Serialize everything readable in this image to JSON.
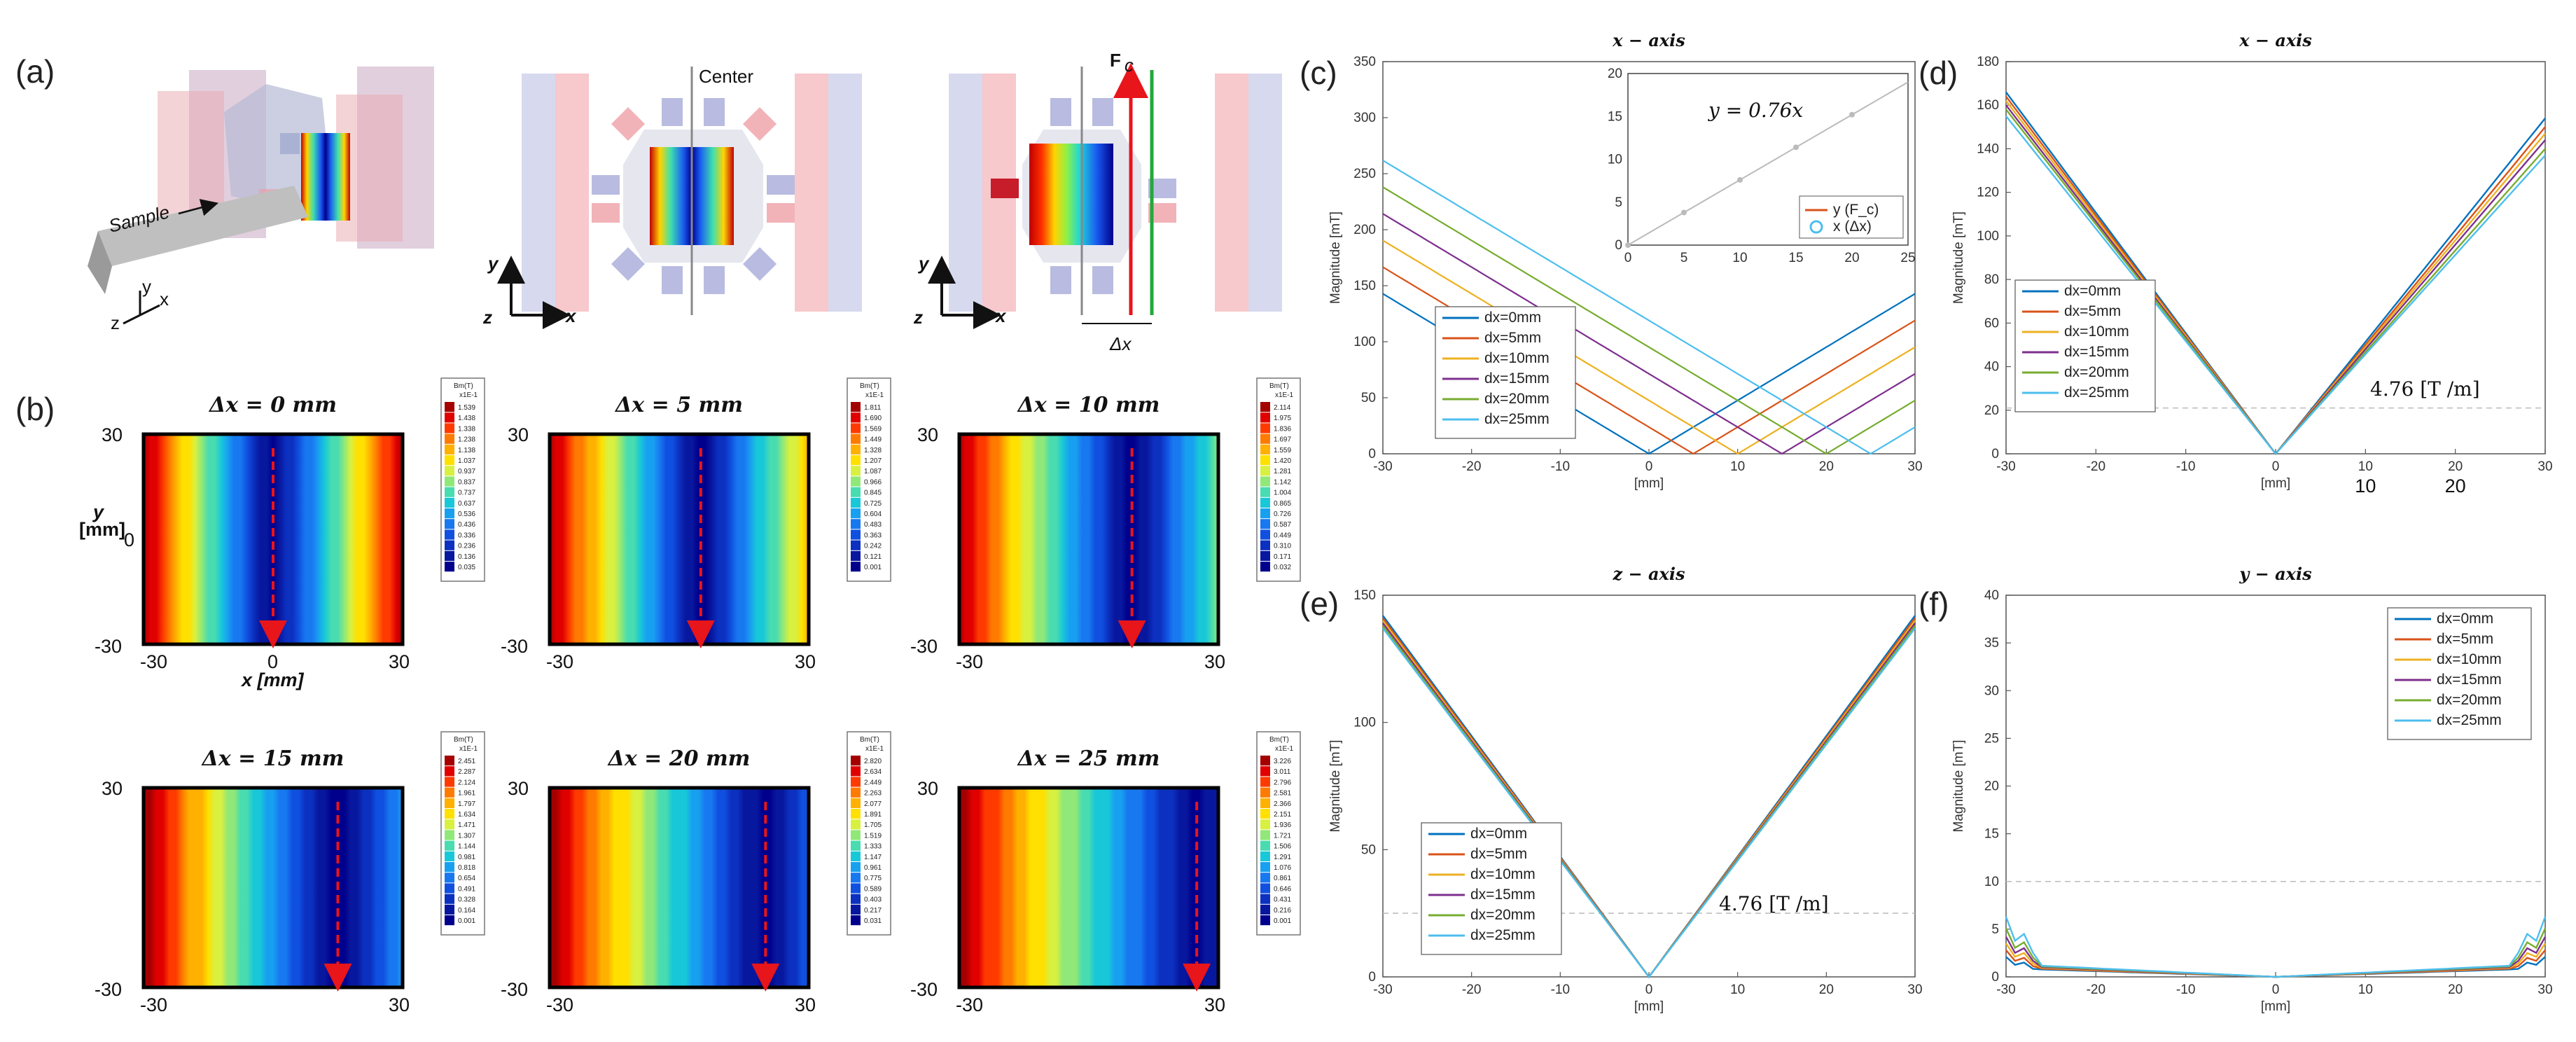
{
  "panel_labels": [
    "(a)",
    "(b)",
    "(c)",
    "(d)",
    "(e)",
    "(f)"
  ],
  "panel_a": {
    "sample_label": "Sample",
    "center_label": "Center",
    "force_label": "F",
    "force_sub": "c",
    "delta_label": "Δx",
    "axis_labels": {
      "x": "x",
      "y": "y",
      "z": "z"
    }
  },
  "panel_b": {
    "colorbar_header": "Bm(T)",
    "colorbar_sub": "x1E-1",
    "y_axis_label": "y",
    "y_axis_unit": "[mm]",
    "x_axis_label": "x [mm]",
    "tick_neg": "-30",
    "tick_pos": "30",
    "tick_zero": "0",
    "maps": [
      {
        "title": "Δx = 0 mm",
        "dx": 0,
        "colorbar": [
          "1.539",
          "1.438",
          "1.338",
          "1.238",
          "1.138",
          "1.037",
          "0.937",
          "0.837",
          "0.737",
          "0.637",
          "0.536",
          "0.436",
          "0.336",
          "0.236",
          "0.136",
          "0.035"
        ]
      },
      {
        "title": "Δx = 5 mm",
        "dx": 5,
        "colorbar": [
          "1.811",
          "1.690",
          "1.569",
          "1.449",
          "1.328",
          "1.207",
          "1.087",
          "0.966",
          "0.845",
          "0.725",
          "0.604",
          "0.483",
          "0.363",
          "0.242",
          "0.121",
          "0.001"
        ]
      },
      {
        "title": "Δx = 10 mm",
        "dx": 10,
        "colorbar": [
          "2.114",
          "1.975",
          "1.836",
          "1.697",
          "1.559",
          "1.420",
          "1.281",
          "1.142",
          "1.004",
          "0.865",
          "0.726",
          "0.587",
          "0.449",
          "0.310",
          "0.171",
          "0.032"
        ]
      },
      {
        "title": "Δx = 15 mm",
        "dx": 15,
        "colorbar": [
          "2.451",
          "2.287",
          "2.124",
          "1.961",
          "1.797",
          "1.634",
          "1.471",
          "1.307",
          "1.144",
          "0.981",
          "0.818",
          "0.654",
          "0.491",
          "0.328",
          "0.164",
          "0.001"
        ]
      },
      {
        "title": "Δx = 20 mm",
        "dx": 20,
        "colorbar": [
          "2.820",
          "2.634",
          "2.449",
          "2.263",
          "2.077",
          "1.891",
          "1.705",
          "1.519",
          "1.333",
          "1.147",
          "0.961",
          "0.775",
          "0.589",
          "0.403",
          "0.217",
          "0.031"
        ]
      },
      {
        "title": "Δx = 25 mm",
        "dx": 25,
        "colorbar": [
          "3.226",
          "3.011",
          "2.796",
          "2.581",
          "2.366",
          "2.151",
          "1.936",
          "1.721",
          "1.506",
          "1.291",
          "1.076",
          "0.861",
          "0.646",
          "0.431",
          "0.216",
          "0.001"
        ]
      }
    ]
  },
  "legend_entries": [
    "dx=0mm",
    "dx=5mm",
    "dx=10mm",
    "dx=15mm",
    "dx=20mm",
    "dx=25mm"
  ],
  "series_colors": [
    "#0072BD",
    "#D95319",
    "#EDB120",
    "#7E2F8E",
    "#77AC30",
    "#4DBEEE"
  ],
  "chart_data": [
    {
      "panel": "(c)",
      "type": "line",
      "title": "x − axis",
      "xlabel": "[mm]",
      "ylabel": "Magnitude [mT]",
      "xlim": [
        -30,
        30
      ],
      "ylim": [
        0,
        350
      ],
      "xticks": [
        -30,
        -20,
        -10,
        0,
        10,
        20,
        30
      ],
      "yticks": [
        0,
        50,
        100,
        150,
        200,
        250,
        300,
        350
      ],
      "gradient_T_per_m": 4.76,
      "series": [
        {
          "name": "dx=0mm",
          "vertex_x": 0
        },
        {
          "name": "dx=5mm",
          "vertex_x": 5
        },
        {
          "name": "dx=10mm",
          "vertex_x": 10
        },
        {
          "name": "dx=15mm",
          "vertex_x": 15
        },
        {
          "name": "dx=20mm",
          "vertex_x": 20
        },
        {
          "name": "dx=25mm",
          "vertex_x": 25
        }
      ],
      "inset": {
        "type": "scatter",
        "formula": "y = 0.76x",
        "xlim": [
          0,
          25
        ],
        "ylim": [
          0,
          20
        ],
        "xticks": [
          0,
          5,
          10,
          15,
          20,
          25
        ],
        "yticks": [
          0,
          5,
          10,
          15,
          20
        ],
        "fit_slope": 0.76,
        "x": [
          0,
          5,
          10,
          15,
          20
        ],
        "y": [
          0,
          3.8,
          7.6,
          11.4,
          15.2
        ],
        "legend": [
          "y (F_c)",
          "x (Δx)"
        ]
      }
    },
    {
      "panel": "(d)",
      "type": "line",
      "title": "x − axis",
      "xlabel": "[mm]",
      "ylabel": "Magnitude [mT]",
      "xlim": [
        -30,
        30
      ],
      "ylim": [
        0,
        180
      ],
      "xticks": [
        -30,
        -20,
        -10,
        0,
        10,
        20,
        30
      ],
      "yticks": [
        0,
        20,
        40,
        60,
        80,
        100,
        120,
        140,
        160,
        180
      ],
      "annotation": "4.76 [T /m]",
      "dashed_line_y": 21,
      "extra_labels": [
        "10",
        "20"
      ],
      "series": [
        {
          "name": "dx=0mm",
          "left_at_-30": 166,
          "right_at_30": 154
        },
        {
          "name": "dx=5mm",
          "left_at_-30": 164,
          "right_at_30": 150
        },
        {
          "name": "dx=10mm",
          "left_at_-30": 162,
          "right_at_30": 147
        },
        {
          "name": "dx=15mm",
          "left_at_-30": 160,
          "right_at_30": 144
        },
        {
          "name": "dx=20mm",
          "left_at_-30": 158,
          "right_at_30": 140
        },
        {
          "name": "dx=25mm",
          "left_at_-30": 155,
          "right_at_30": 137
        }
      ]
    },
    {
      "panel": "(e)",
      "type": "line",
      "title": "z − axis",
      "xlabel": "[mm]",
      "ylabel": "Magnitude [mT]",
      "xlim": [
        -30,
        30
      ],
      "ylim": [
        0,
        150
      ],
      "xticks": [
        -30,
        -20,
        -10,
        0,
        10,
        20,
        30
      ],
      "yticks": [
        0,
        50,
        100,
        150
      ],
      "annotation": "4.76 [T /m]",
      "dashed_line_y": 25,
      "series": [
        {
          "name": "dx=0mm",
          "left_at_-30": 142,
          "right_at_30": 142
        },
        {
          "name": "dx=5mm",
          "left_at_-30": 141,
          "right_at_30": 141
        },
        {
          "name": "dx=10mm",
          "left_at_-30": 140,
          "right_at_30": 140
        },
        {
          "name": "dx=15mm",
          "left_at_-30": 139,
          "right_at_30": 139
        },
        {
          "name": "dx=20mm",
          "left_at_-30": 138,
          "right_at_30": 138
        },
        {
          "name": "dx=25mm",
          "left_at_-30": 137,
          "right_at_30": 137
        }
      ]
    },
    {
      "panel": "(f)",
      "type": "line",
      "title": "y − axis",
      "xlabel": "[mm]",
      "ylabel": "Magnitude [mT]",
      "xlim": [
        -30,
        30
      ],
      "ylim": [
        0,
        40
      ],
      "xticks": [
        -30,
        -20,
        -10,
        0,
        10,
        20,
        30
      ],
      "yticks": [
        0,
        5,
        10,
        15,
        20,
        25,
        30,
        35,
        40
      ],
      "dashed_line_y": 10,
      "series": [
        {
          "name": "dx=0mm",
          "edge_value": 1.2
        },
        {
          "name": "dx=5mm",
          "edge_value": 1.6
        },
        {
          "name": "dx=10mm",
          "edge_value": 2.0
        },
        {
          "name": "dx=15mm",
          "edge_value": 2.4
        },
        {
          "name": "dx=20mm",
          "edge_value": 2.9
        },
        {
          "name": "dx=25mm",
          "edge_value": 3.6
        }
      ]
    }
  ]
}
